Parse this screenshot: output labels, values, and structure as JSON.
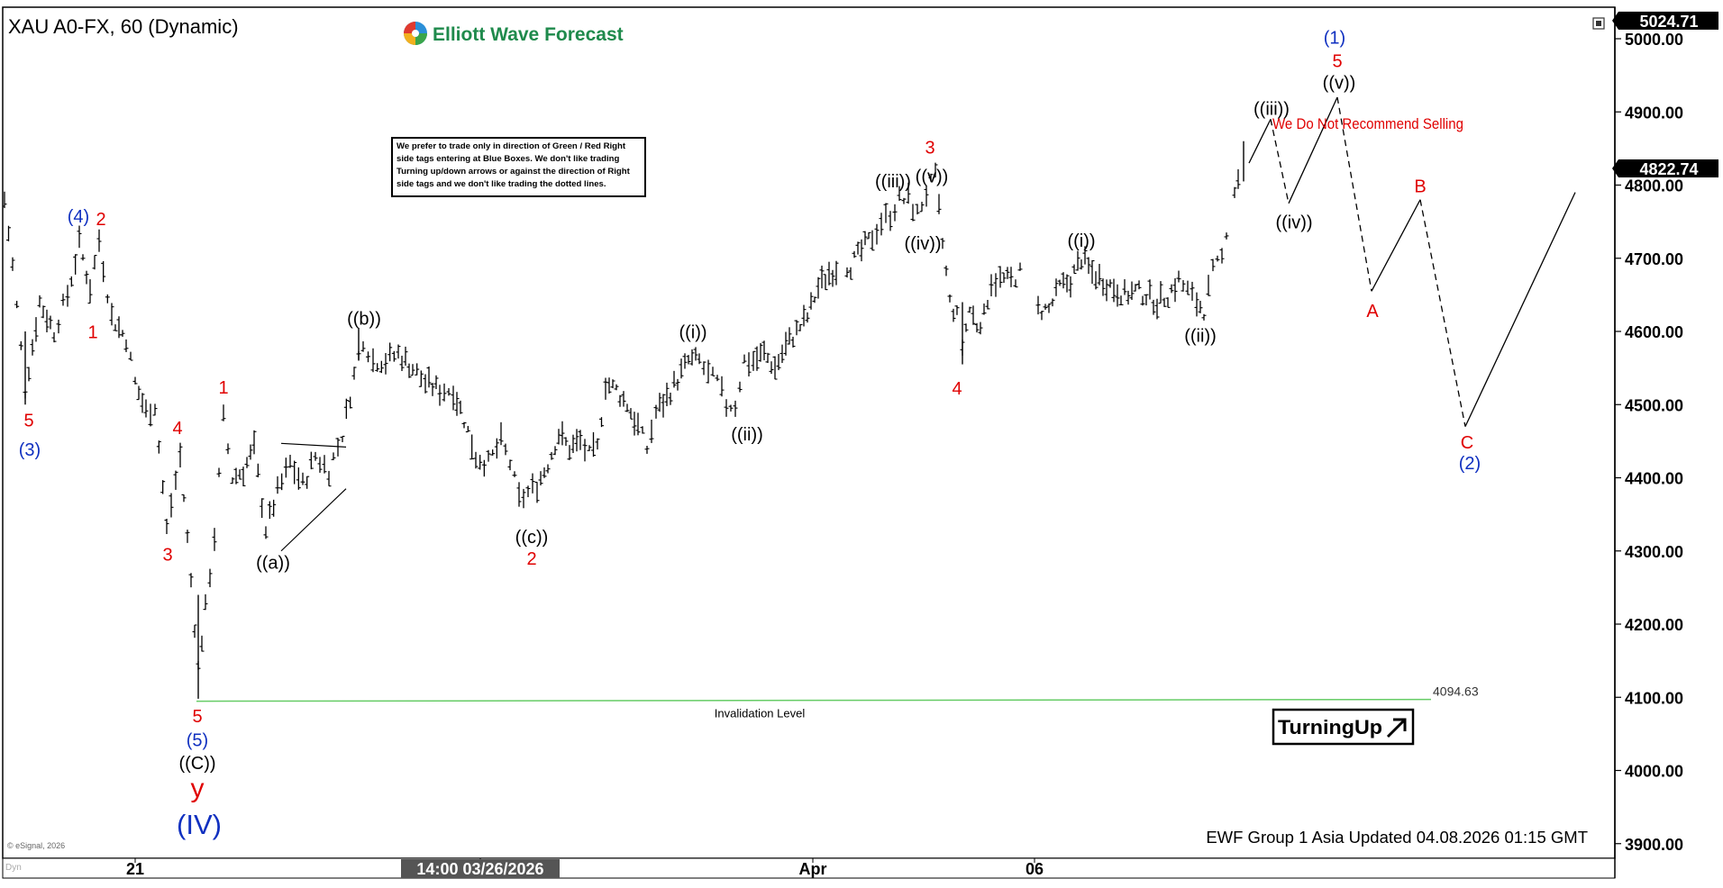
{
  "header": {
    "symbol_title": "XAU A0-FX, 60 (Dynamic)",
    "logo_text": "Elliott Wave Forecast"
  },
  "note_lines": [
    "We prefer to trade only in direction of Green / Red Right",
    "side tags entering at Blue Boxes. We don't like trading",
    "Turning up/down arrows or against the direction of Right",
    "side tags and we don't like trading the dotted lines."
  ],
  "warning_text": "We Do Not Recommend Selling",
  "invalidation": {
    "label": "Invalidation Level",
    "price": 4094.63,
    "price_text": "4094.63"
  },
  "badge": {
    "text": "TurningUp",
    "arrow_icon": "up-right-arrow-icon"
  },
  "footer": {
    "updated": "EWF Group 1 Asia Updated 04.08.2026 01:15 GMT",
    "copyright": "© eSignal, 2026",
    "dyn": "Dyn"
  },
  "colors": {
    "invalidation": "#66cc66",
    "red_labels": "#e00000",
    "blue_labels": "#1030c0",
    "bars": "#000000"
  },
  "chart_data": {
    "type": "bar",
    "ylim": [
      3880,
      5040
    ],
    "y_ticks": [
      "5000.00",
      "4900.00",
      "4800.00",
      "4700.00",
      "4600.00",
      "4500.00",
      "4400.00",
      "4300.00",
      "4200.00",
      "4100.00",
      "4000.00",
      "3900.00"
    ],
    "current_price": {
      "value": 4822.74,
      "text": "4822.74"
    },
    "top_price": {
      "value": 5024.71,
      "text": "5024.71"
    },
    "x_labels": [
      {
        "text": "21",
        "t": 150
      },
      {
        "text": "14:00 03/26/2026",
        "t": 533,
        "highlight": true
      },
      {
        "text": "Apr",
        "t": 902
      },
      {
        "text": "06",
        "t": 1148
      }
    ],
    "price_path": [
      {
        "t": 5,
        "p": 4780
      },
      {
        "t": 14,
        "p": 4690
      },
      {
        "t": 28,
        "p": 4520
      },
      {
        "t": 44,
        "p": 4640
      },
      {
        "t": 60,
        "p": 4600
      },
      {
        "t": 75,
        "p": 4650
      },
      {
        "t": 88,
        "p": 4720
      },
      {
        "t": 100,
        "p": 4660
      },
      {
        "t": 110,
        "p": 4725
      },
      {
        "t": 124,
        "p": 4620
      },
      {
        "t": 140,
        "p": 4590
      },
      {
        "t": 150,
        "p": 4530
      },
      {
        "t": 162,
        "p": 4490
      },
      {
        "t": 172,
        "p": 4500
      },
      {
        "t": 185,
        "p": 4330
      },
      {
        "t": 200,
        "p": 4430
      },
      {
        "t": 212,
        "p": 4260
      },
      {
        "t": 220,
        "p": 4140
      },
      {
        "t": 228,
        "p": 4220
      },
      {
        "t": 238,
        "p": 4320
      },
      {
        "t": 248,
        "p": 4480
      },
      {
        "t": 258,
        "p": 4400
      },
      {
        "t": 270,
        "p": 4410
      },
      {
        "t": 282,
        "p": 4440
      },
      {
        "t": 295,
        "p": 4330
      },
      {
        "t": 308,
        "p": 4380
      },
      {
        "t": 322,
        "p": 4420
      },
      {
        "t": 336,
        "p": 4390
      },
      {
        "t": 350,
        "p": 4430
      },
      {
        "t": 365,
        "p": 4410
      },
      {
        "t": 380,
        "p": 4460
      },
      {
        "t": 393,
        "p": 4540
      },
      {
        "t": 403,
        "p": 4590
      },
      {
        "t": 414,
        "p": 4560
      },
      {
        "t": 428,
        "p": 4560
      },
      {
        "t": 442,
        "p": 4570
      },
      {
        "t": 458,
        "p": 4550
      },
      {
        "t": 472,
        "p": 4530
      },
      {
        "t": 488,
        "p": 4520
      },
      {
        "t": 503,
        "p": 4520
      },
      {
        "t": 515,
        "p": 4480
      },
      {
        "t": 528,
        "p": 4430
      },
      {
        "t": 542,
        "p": 4420
      },
      {
        "t": 556,
        "p": 4450
      },
      {
        "t": 566,
        "p": 4420
      },
      {
        "t": 576,
        "p": 4370
      },
      {
        "t": 586,
        "p": 4380
      },
      {
        "t": 596,
        "p": 4390
      },
      {
        "t": 608,
        "p": 4420
      },
      {
        "t": 620,
        "p": 4460
      },
      {
        "t": 632,
        "p": 4440
      },
      {
        "t": 644,
        "p": 4450
      },
      {
        "t": 654,
        "p": 4430
      },
      {
        "t": 663,
        "p": 4440
      },
      {
        "t": 672,
        "p": 4530
      },
      {
        "t": 684,
        "p": 4520
      },
      {
        "t": 696,
        "p": 4500
      },
      {
        "t": 708,
        "p": 4470
      },
      {
        "t": 718,
        "p": 4440
      },
      {
        "t": 728,
        "p": 4490
      },
      {
        "t": 740,
        "p": 4510
      },
      {
        "t": 752,
        "p": 4535
      },
      {
        "t": 764,
        "p": 4560
      },
      {
        "t": 776,
        "p": 4560
      },
      {
        "t": 786,
        "p": 4540
      },
      {
        "t": 796,
        "p": 4530
      },
      {
        "t": 806,
        "p": 4500
      },
      {
        "t": 816,
        "p": 4500
      },
      {
        "t": 826,
        "p": 4560
      },
      {
        "t": 836,
        "p": 4560
      },
      {
        "t": 848,
        "p": 4570
      },
      {
        "t": 860,
        "p": 4550
      },
      {
        "t": 872,
        "p": 4580
      },
      {
        "t": 884,
        "p": 4600
      },
      {
        "t": 896,
        "p": 4620
      },
      {
        "t": 908,
        "p": 4660
      },
      {
        "t": 920,
        "p": 4680
      },
      {
        "t": 932,
        "p": 4690
      },
      {
        "t": 944,
        "p": 4690
      },
      {
        "t": 956,
        "p": 4710
      },
      {
        "t": 968,
        "p": 4730
      },
      {
        "t": 978,
        "p": 4750
      },
      {
        "t": 988,
        "p": 4760
      },
      {
        "t": 998,
        "p": 4780
      },
      {
        "t": 1008,
        "p": 4780
      },
      {
        "t": 1018,
        "p": 4760
      },
      {
        "t": 1028,
        "p": 4790
      },
      {
        "t": 1038,
        "p": 4810
      },
      {
        "t": 1046,
        "p": 4720
      },
      {
        "t": 1054,
        "p": 4640
      },
      {
        "t": 1062,
        "p": 4620
      },
      {
        "t": 1068,
        "p": 4580
      },
      {
        "t": 1076,
        "p": 4630
      },
      {
        "t": 1084,
        "p": 4610
      },
      {
        "t": 1092,
        "p": 4620
      },
      {
        "t": 1100,
        "p": 4670
      },
      {
        "t": 1110,
        "p": 4670
      },
      {
        "t": 1122,
        "p": 4670
      },
      {
        "t": 1132,
        "p": 4680
      },
      {
        "t": 1152,
        "p": 4630
      },
      {
        "t": 1164,
        "p": 4630
      },
      {
        "t": 1176,
        "p": 4660
      },
      {
        "t": 1188,
        "p": 4670
      },
      {
        "t": 1200,
        "p": 4700
      },
      {
        "t": 1212,
        "p": 4680
      },
      {
        "t": 1224,
        "p": 4670
      },
      {
        "t": 1236,
        "p": 4660
      },
      {
        "t": 1248,
        "p": 4650
      },
      {
        "t": 1260,
        "p": 4655
      },
      {
        "t": 1272,
        "p": 4650
      },
      {
        "t": 1284,
        "p": 4640
      },
      {
        "t": 1296,
        "p": 4650
      },
      {
        "t": 1308,
        "p": 4670
      },
      {
        "t": 1318,
        "p": 4655
      },
      {
        "t": 1328,
        "p": 4640
      },
      {
        "t": 1336,
        "p": 4630
      },
      {
        "t": 1346,
        "p": 4680
      },
      {
        "t": 1356,
        "p": 4700
      },
      {
        "t": 1366,
        "p": 4780
      },
      {
        "t": 1374,
        "p": 4810
      },
      {
        "t": 1380,
        "p": 4820
      }
    ],
    "projection": [
      {
        "t": 1386,
        "p": 4830,
        "style": "solid"
      },
      {
        "t": 1410,
        "p": 4890,
        "style": "solid"
      },
      {
        "t": 1430,
        "p": 4775,
        "style": "dashed"
      },
      {
        "t": 1484,
        "p": 4920,
        "style": "solid"
      },
      {
        "t": 1522,
        "p": 4655,
        "style": "dashed"
      },
      {
        "t": 1576,
        "p": 4780,
        "style": "solid"
      },
      {
        "t": 1626,
        "p": 4470,
        "style": "dashed"
      },
      {
        "t": 1748,
        "p": 4790,
        "style": "solid"
      }
    ],
    "trendlines": [
      {
        "t1": 312,
        "p1": 4447,
        "t2": 384,
        "p2": 4442
      },
      {
        "t1": 312,
        "p1": 4300,
        "t2": 384,
        "p2": 4385
      }
    ],
    "wave_labels": [
      {
        "text": "(4)",
        "t": 87,
        "p": 4749,
        "color": "blue"
      },
      {
        "text": "2",
        "t": 112,
        "p": 4745,
        "color": "red"
      },
      {
        "text": "1",
        "t": 103,
        "p": 4591,
        "color": "red"
      },
      {
        "text": "5",
        "t": 32,
        "p": 4470,
        "color": "red"
      },
      {
        "text": "(3)",
        "t": 33,
        "p": 4430,
        "color": "blue"
      },
      {
        "text": "1",
        "t": 248,
        "p": 4515,
        "color": "red"
      },
      {
        "text": "4",
        "t": 197,
        "p": 4460,
        "color": "red"
      },
      {
        "text": "3",
        "t": 186,
        "p": 4287,
        "color": "red"
      },
      {
        "text": "5",
        "t": 219,
        "p": 4066,
        "color": "red"
      },
      {
        "text": "(5)",
        "t": 219,
        "p": 4033,
        "color": "blue"
      },
      {
        "text": "((C))",
        "t": 219,
        "p": 4002,
        "color": "black"
      },
      {
        "text": "y",
        "t": 219,
        "p": 3964,
        "color": "red",
        "size": 30
      },
      {
        "text": "(IV)",
        "t": 221,
        "p": 3913,
        "color": "blue",
        "size": 31
      },
      {
        "text": "((b))",
        "t": 404,
        "p": 4609,
        "color": "black"
      },
      {
        "text": "((a))",
        "t": 303,
        "p": 4276,
        "color": "black"
      },
      {
        "text": "((c))",
        "t": 590,
        "p": 4311,
        "color": "black"
      },
      {
        "text": "2",
        "t": 590,
        "p": 4281,
        "color": "red"
      },
      {
        "text": "((i))",
        "t": 769,
        "p": 4591,
        "color": "black"
      },
      {
        "text": "((ii))",
        "t": 829,
        "p": 4451,
        "color": "black"
      },
      {
        "text": "((iii))",
        "t": 991,
        "p": 4797,
        "color": "black"
      },
      {
        "text": "((v))",
        "t": 1034,
        "p": 4804,
        "color": "black"
      },
      {
        "text": "3",
        "t": 1032,
        "p": 4843,
        "color": "red"
      },
      {
        "text": "((iv))",
        "t": 1024,
        "p": 4712,
        "color": "black"
      },
      {
        "text": "4",
        "t": 1062,
        "p": 4514,
        "color": "red"
      },
      {
        "text": "((i))",
        "t": 1200,
        "p": 4716,
        "color": "black"
      },
      {
        "text": "((ii))",
        "t": 1332,
        "p": 4586,
        "color": "black"
      },
      {
        "text": "((iii))",
        "t": 1411,
        "p": 4896,
        "color": "black"
      },
      {
        "text": "((iv))",
        "t": 1436,
        "p": 4741,
        "color": "black"
      },
      {
        "text": "(1)",
        "t": 1481,
        "p": 4993,
        "color": "blue"
      },
      {
        "text": "5",
        "t": 1484,
        "p": 4961,
        "color": "red"
      },
      {
        "text": "((v))",
        "t": 1486,
        "p": 4932,
        "color": "black"
      },
      {
        "text": "A",
        "t": 1523,
        "p": 4620,
        "color": "red"
      },
      {
        "text": "B",
        "t": 1576,
        "p": 4790,
        "color": "red"
      },
      {
        "text": "C",
        "t": 1628,
        "p": 4440,
        "color": "red"
      },
      {
        "text": "(2)",
        "t": 1631,
        "p": 4412,
        "color": "blue"
      }
    ]
  }
}
